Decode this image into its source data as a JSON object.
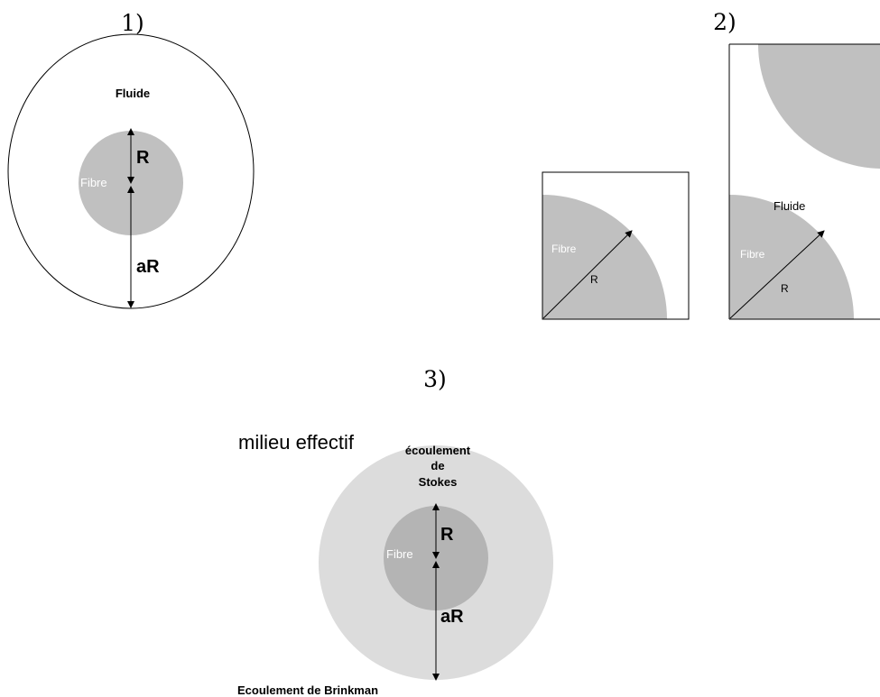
{
  "panels": {
    "p1": {
      "number": "1)",
      "fluid_label": "Fluide",
      "fibre_label": "Fibre",
      "r_label": "R",
      "ar_label": "aR"
    },
    "p2": {
      "number": "2)",
      "small_cell": {
        "fibre_label": "Fibre",
        "r_label": "R"
      },
      "tall_cell": {
        "fluid_label": "Fluide",
        "fibre_label": "Fibre",
        "r_label": "R"
      }
    },
    "p3": {
      "number": "3)",
      "effective_medium_label": "milieu effectif",
      "stokes_line1": "écoulement",
      "stokes_line2": "de",
      "stokes_line3": "Stokes",
      "fibre_label": "Fibre",
      "r_label": "R",
      "ar_label": "aR",
      "brinkman_label": "Ecoulement de Brinkman"
    }
  },
  "colors": {
    "fibre": "#c0c0c0",
    "brinkman_region": "#dcdcdc",
    "fibre_in_medium": "#b4b4b4",
    "outline": "#000000",
    "fibre_text": "#ffffff"
  }
}
